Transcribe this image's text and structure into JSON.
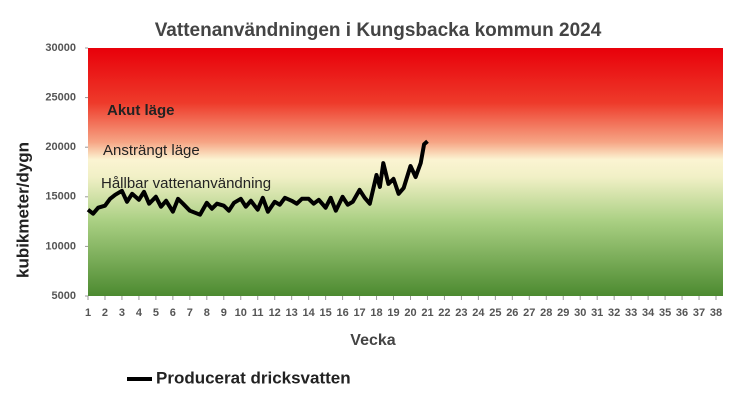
{
  "chart_data": {
    "type": "line",
    "title": "Vattenanvändningen i Kungsbacka kommun  2024",
    "xlabel": "Vecka",
    "ylabel": "kubikmeter/dygn",
    "annotations": [
      "Akut läge",
      "Ansträngt läge",
      "Hållbar vattenanvändning"
    ],
    "xlim": [
      1,
      38
    ],
    "xticks": [
      1,
      2,
      3,
      4,
      5,
      6,
      7,
      8,
      9,
      10,
      11,
      12,
      13,
      14,
      15,
      16,
      17,
      18,
      19,
      20,
      21,
      22,
      23,
      24,
      25,
      26,
      27,
      28,
      29,
      30,
      31,
      32,
      33,
      34,
      35,
      36,
      37,
      38
    ],
    "ylim": [
      5000,
      30000
    ],
    "yticks": [
      5000,
      10000,
      15000,
      20000,
      25000,
      30000
    ],
    "x": [
      1.0,
      1.3,
      1.6,
      2.0,
      2.3,
      2.6,
      3.0,
      3.3,
      3.6,
      4.0,
      4.3,
      4.6,
      5.0,
      5.3,
      5.6,
      6.0,
      6.3,
      6.6,
      7.0,
      7.3,
      7.6,
      8.0,
      8.3,
      8.6,
      9.0,
      9.3,
      9.6,
      10.0,
      10.3,
      10.6,
      11.0,
      11.3,
      11.6,
      12.0,
      12.3,
      12.6,
      13.0,
      13.3,
      13.6,
      14.0,
      14.3,
      14.6,
      15.0,
      15.3,
      15.6,
      16.0,
      16.3,
      16.6,
      17.0,
      17.3,
      17.6,
      18.0,
      18.2,
      18.4,
      18.7,
      19.0,
      19.3,
      19.6,
      20.0,
      20.3,
      20.6,
      20.8,
      21.0
    ],
    "series": [
      {
        "name": "Producerat dricksvatten",
        "color": "#000000",
        "values": [
          13700,
          13300,
          13900,
          14100,
          14800,
          15200,
          15600,
          14500,
          15300,
          14700,
          15500,
          14300,
          15000,
          14000,
          14600,
          13500,
          14800,
          14300,
          13600,
          13400,
          13200,
          14400,
          13800,
          14300,
          14100,
          13600,
          14400,
          14800,
          14000,
          14600,
          13700,
          14900,
          13500,
          14500,
          14200,
          14900,
          14600,
          14300,
          14800,
          14800,
          14300,
          14700,
          13900,
          14900,
          13600,
          15000,
          14200,
          14500,
          15700,
          14900,
          14300,
          17200,
          16000,
          18400,
          16300,
          16800,
          15300,
          15900,
          18100,
          17000,
          18400,
          20300,
          20600
        ]
      }
    ]
  }
}
